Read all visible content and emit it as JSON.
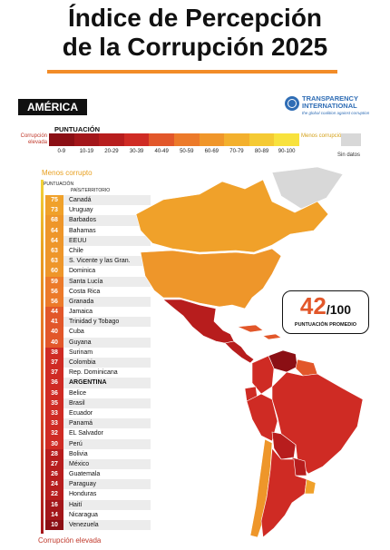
{
  "title_line1": "Índice de Percepción",
  "title_line2": "de la Corrupción 2025",
  "region": "AMÉRICA",
  "logo": {
    "name_line1": "TRANSPARENCY",
    "name_line2": "INTERNATIONAL",
    "tagline": "the global coalition against corruption"
  },
  "scale": {
    "title": "PUNTUACIÓN",
    "low_label": "Corrupción elevada",
    "high_label": "Menos corrupción",
    "no_data": "Sin datos",
    "ticks": [
      "0-9",
      "10-19",
      "20-29",
      "30-39",
      "40-49",
      "50-59",
      "60-69",
      "70-79",
      "80-89",
      "90-100"
    ],
    "colors": [
      "#8b0f14",
      "#a3161a",
      "#b71d1d",
      "#cf2b24",
      "#e2572a",
      "#ec7a2a",
      "#f0962a",
      "#f3b02d",
      "#f5ca33",
      "#f8e23d"
    ]
  },
  "list": {
    "top_label": "Menos corrupto",
    "score_header": "PUNTUACIÓN",
    "country_header": "PAÍS/TERRITORIO",
    "bottom_label": "Corrupción elevada",
    "rows": [
      {
        "score": "75",
        "country": "Canadá",
        "color": "#f0a12a"
      },
      {
        "score": "73",
        "country": "Uruguay",
        "color": "#f0a12a"
      },
      {
        "score": "68",
        "country": "Barbados",
        "color": "#ee962a"
      },
      {
        "score": "64",
        "country": "Bahamas",
        "color": "#ee962a"
      },
      {
        "score": "64",
        "country": "EEUU",
        "color": "#ee962a"
      },
      {
        "score": "63",
        "country": "Chile",
        "color": "#ee962a"
      },
      {
        "score": "63",
        "country": "S. Vicente y las Gran.",
        "color": "#ee962a"
      },
      {
        "score": "60",
        "country": "Dominica",
        "color": "#ee962a"
      },
      {
        "score": "59",
        "country": "Santa Lucía",
        "color": "#ec7a2a"
      },
      {
        "score": "56",
        "country": "Costa Rica",
        "color": "#ec7a2a"
      },
      {
        "score": "56",
        "country": "Granada",
        "color": "#ec7a2a"
      },
      {
        "score": "44",
        "country": "Jamaica",
        "color": "#e2572a"
      },
      {
        "score": "41",
        "country": "Trinidad y Tobago",
        "color": "#e2572a"
      },
      {
        "score": "40",
        "country": "Cuba",
        "color": "#e2572a"
      },
      {
        "score": "40",
        "country": "Guyana",
        "color": "#e2572a"
      },
      {
        "score": "38",
        "country": "Surinam",
        "color": "#cf2b24"
      },
      {
        "score": "37",
        "country": "Colombia",
        "color": "#cf2b24"
      },
      {
        "score": "37",
        "country": "Rep. Dominicana",
        "color": "#cf2b24"
      },
      {
        "score": "36",
        "country": "ARGENTINA",
        "color": "#cf2b24",
        "highlight": true
      },
      {
        "score": "36",
        "country": "Belice",
        "color": "#cf2b24"
      },
      {
        "score": "35",
        "country": "Brasil",
        "color": "#cf2b24"
      },
      {
        "score": "33",
        "country": "Ecuador",
        "color": "#cf2b24"
      },
      {
        "score": "33",
        "country": "Panamá",
        "color": "#cf2b24"
      },
      {
        "score": "32",
        "country": "EL Salvador",
        "color": "#cf2b24"
      },
      {
        "score": "30",
        "country": "Perú",
        "color": "#cf2b24"
      },
      {
        "score": "28",
        "country": "Bolivia",
        "color": "#b71d1d"
      },
      {
        "score": "27",
        "country": "México",
        "color": "#b71d1d"
      },
      {
        "score": "26",
        "country": "Guatemala",
        "color": "#b71d1d"
      },
      {
        "score": "24",
        "country": "Paraguay",
        "color": "#b71d1d"
      },
      {
        "score": "22",
        "country": "Honduras",
        "color": "#b71d1d"
      },
      {
        "score": "16",
        "country": "Haití",
        "color": "#a3161a"
      },
      {
        "score": "14",
        "country": "Nicaragua",
        "color": "#a3161a"
      },
      {
        "score": "10",
        "country": "Venezuela",
        "color": "#8b0f14"
      }
    ]
  },
  "average": {
    "score": "42",
    "denominator": "/100",
    "label": "PUNTUACIÓN PROMEDIO"
  },
  "map_colors": {
    "canada": "#f0a12a",
    "usa": "#ee962a",
    "mexico": "#b71d1d",
    "central": "#b71d1d",
    "caribbean": "#e2572a",
    "venezuela": "#8b0f14",
    "colombia": "#cf2b24",
    "ecuador": "#cf2b24",
    "peru": "#cf2b24",
    "brazil": "#cf2b24",
    "bolivia": "#b71d1d",
    "paraguay": "#b71d1d",
    "chile": "#ee962a",
    "argentina": "#cf2b24",
    "uruguay": "#f0a12a",
    "guianas": "#e2572a",
    "greenland": "#d8d8d8"
  }
}
